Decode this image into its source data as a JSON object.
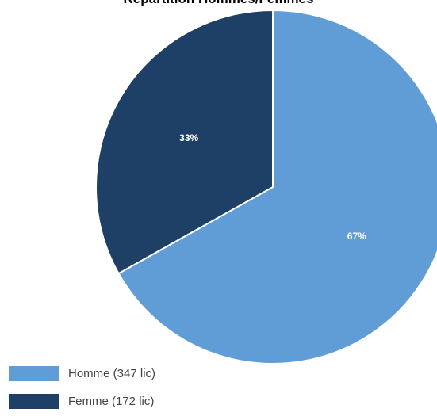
{
  "chart_data": {
    "type": "pie",
    "title": "Répartition Hommes/Femmes",
    "slices": [
      {
        "label": "Homme (347 lic)",
        "value": 347,
        "percent_label": "67%",
        "color": "#609dd6"
      },
      {
        "label": "Femme (172 lic)",
        "value": 172,
        "percent_label": "33%",
        "color": "#1e3f66"
      }
    ],
    "legend_position": "bottom-left"
  }
}
